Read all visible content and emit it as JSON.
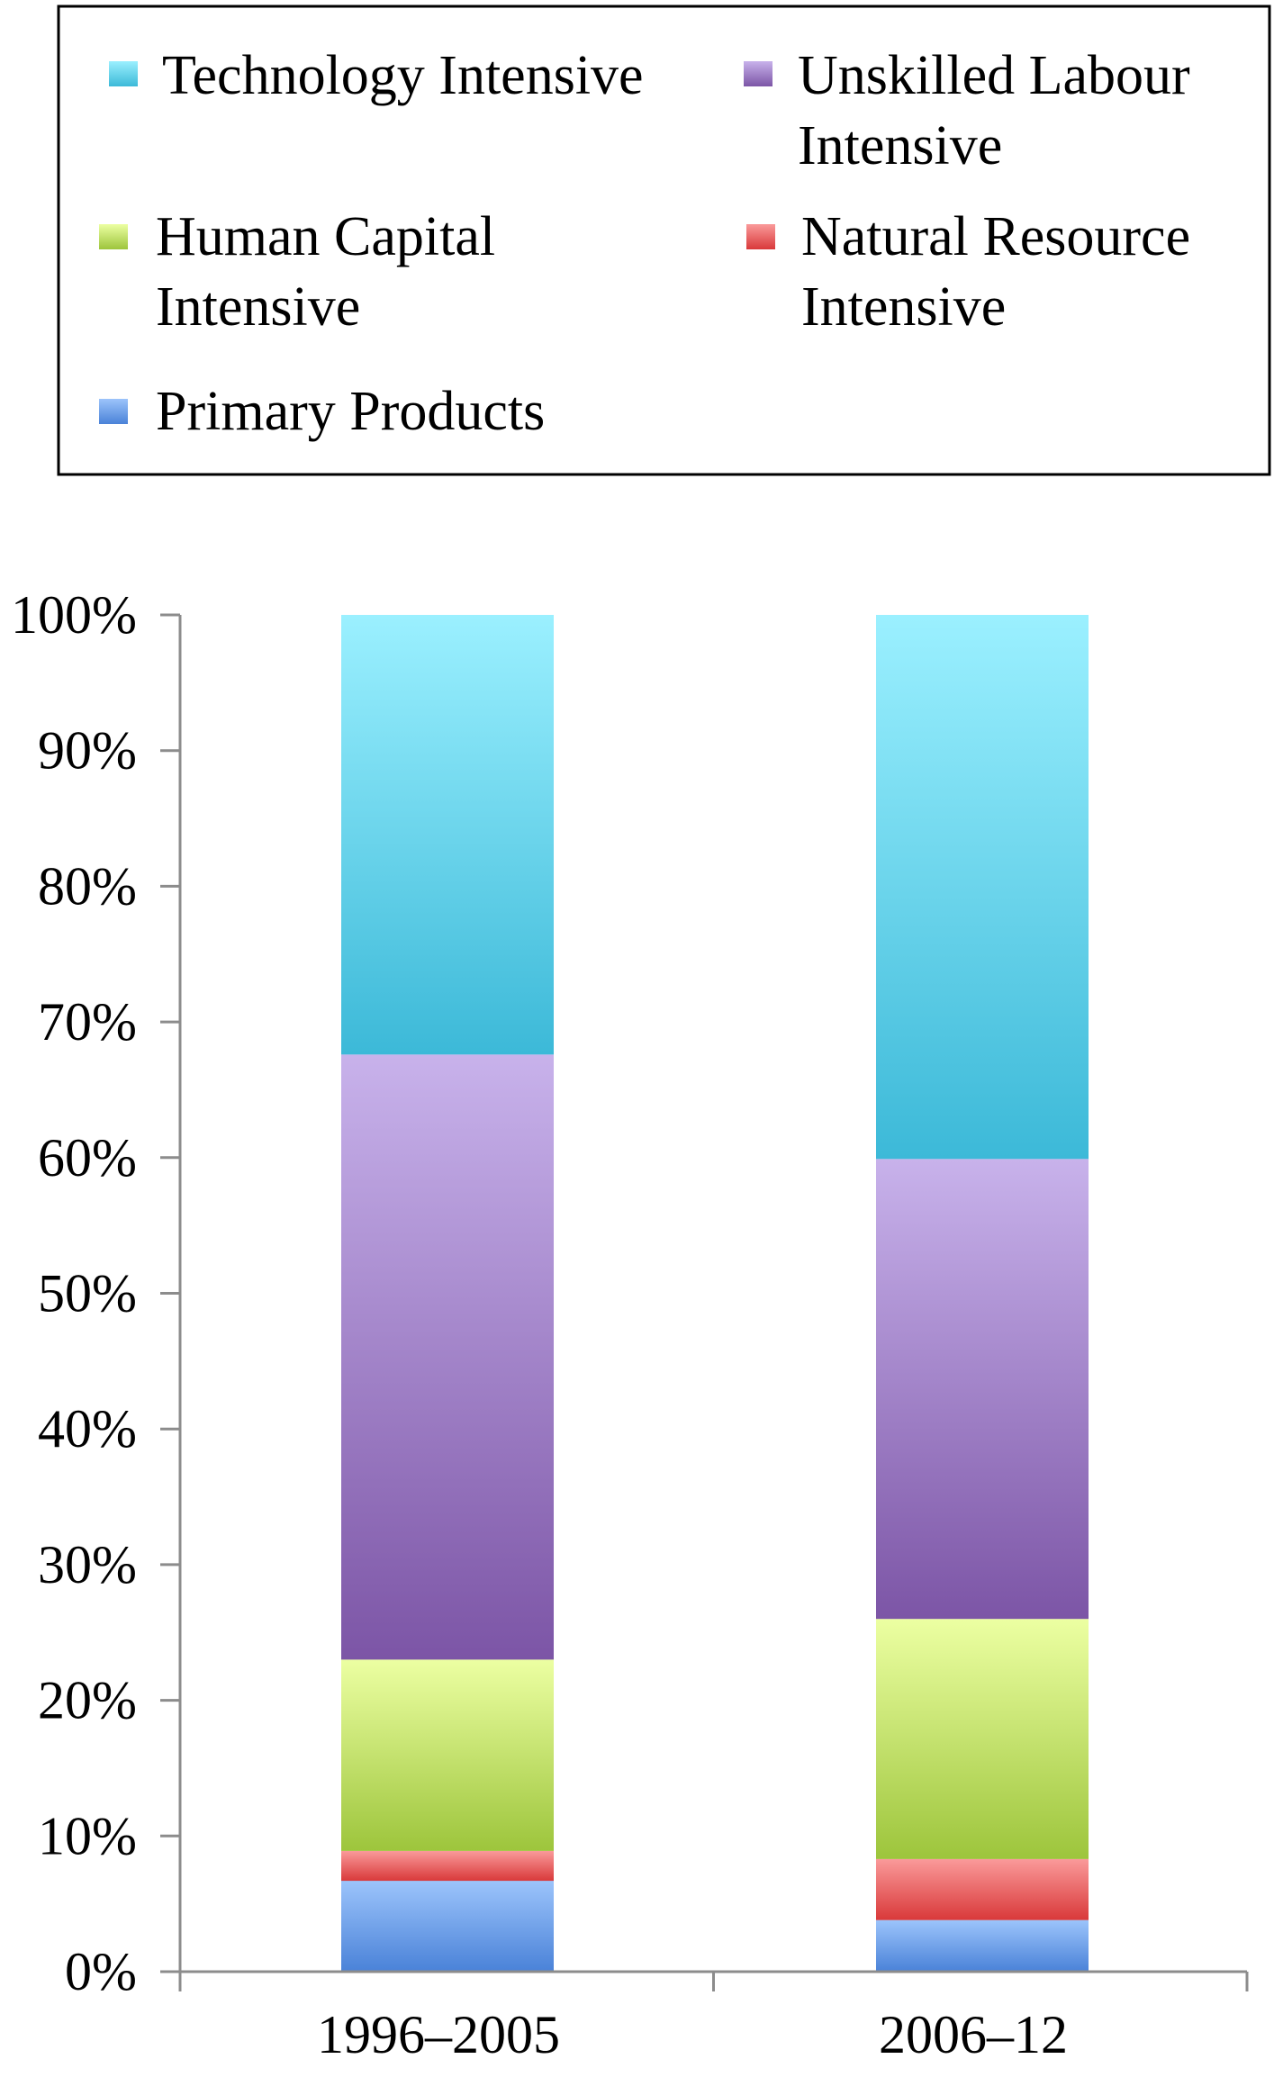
{
  "chart_data": {
    "type": "bar",
    "stacked": true,
    "orientation": "vertical",
    "normalized_percent": true,
    "title": "",
    "xlabel": "",
    "ylabel": "",
    "categories": [
      "1996–2005",
      "2006–12"
    ],
    "ylim": [
      0,
      100
    ],
    "yticks": [
      0,
      10,
      20,
      30,
      40,
      50,
      60,
      70,
      80,
      90,
      100
    ],
    "ytick_labels": [
      "0%",
      "10%",
      "20%",
      "30%",
      "40%",
      "50%",
      "60%",
      "70%",
      "80%",
      "90%",
      "100%"
    ],
    "grid": false,
    "legend_position": "top",
    "series": [
      {
        "name": "Primary Products",
        "legend_lines": [
          "Primary Products"
        ],
        "values": [
          6.7,
          3.8
        ],
        "color_light": "#9cc4fb",
        "color_dark": "#4a82d8"
      },
      {
        "name": "Natural Resource Intensive",
        "legend_lines": [
          "Natural Resource",
          "Intensive"
        ],
        "values": [
          2.2,
          4.5
        ],
        "color_light": "#fa9a9a",
        "color_dark": "#d9393a"
      },
      {
        "name": "Human Capital Intensive",
        "legend_lines": [
          "Human Capital",
          "Intensive"
        ],
        "values": [
          14.1,
          17.7
        ],
        "color_light": "#ecffa2",
        "color_dark": "#9dc53c"
      },
      {
        "name": "Unskilled Labour Intensive",
        "legend_lines": [
          "Unskilled Labour",
          "Intensive"
        ],
        "values": [
          44.6,
          33.9
        ],
        "color_light": "#c8b2eb",
        "color_dark": "#7c55a6"
      },
      {
        "name": "Technology Intensive",
        "legend_lines": [
          "Technology Intensive"
        ],
        "values": [
          32.4,
          40.1
        ],
        "color_light": "#9bf0ff",
        "color_dark": "#3cb9d8"
      }
    ]
  }
}
